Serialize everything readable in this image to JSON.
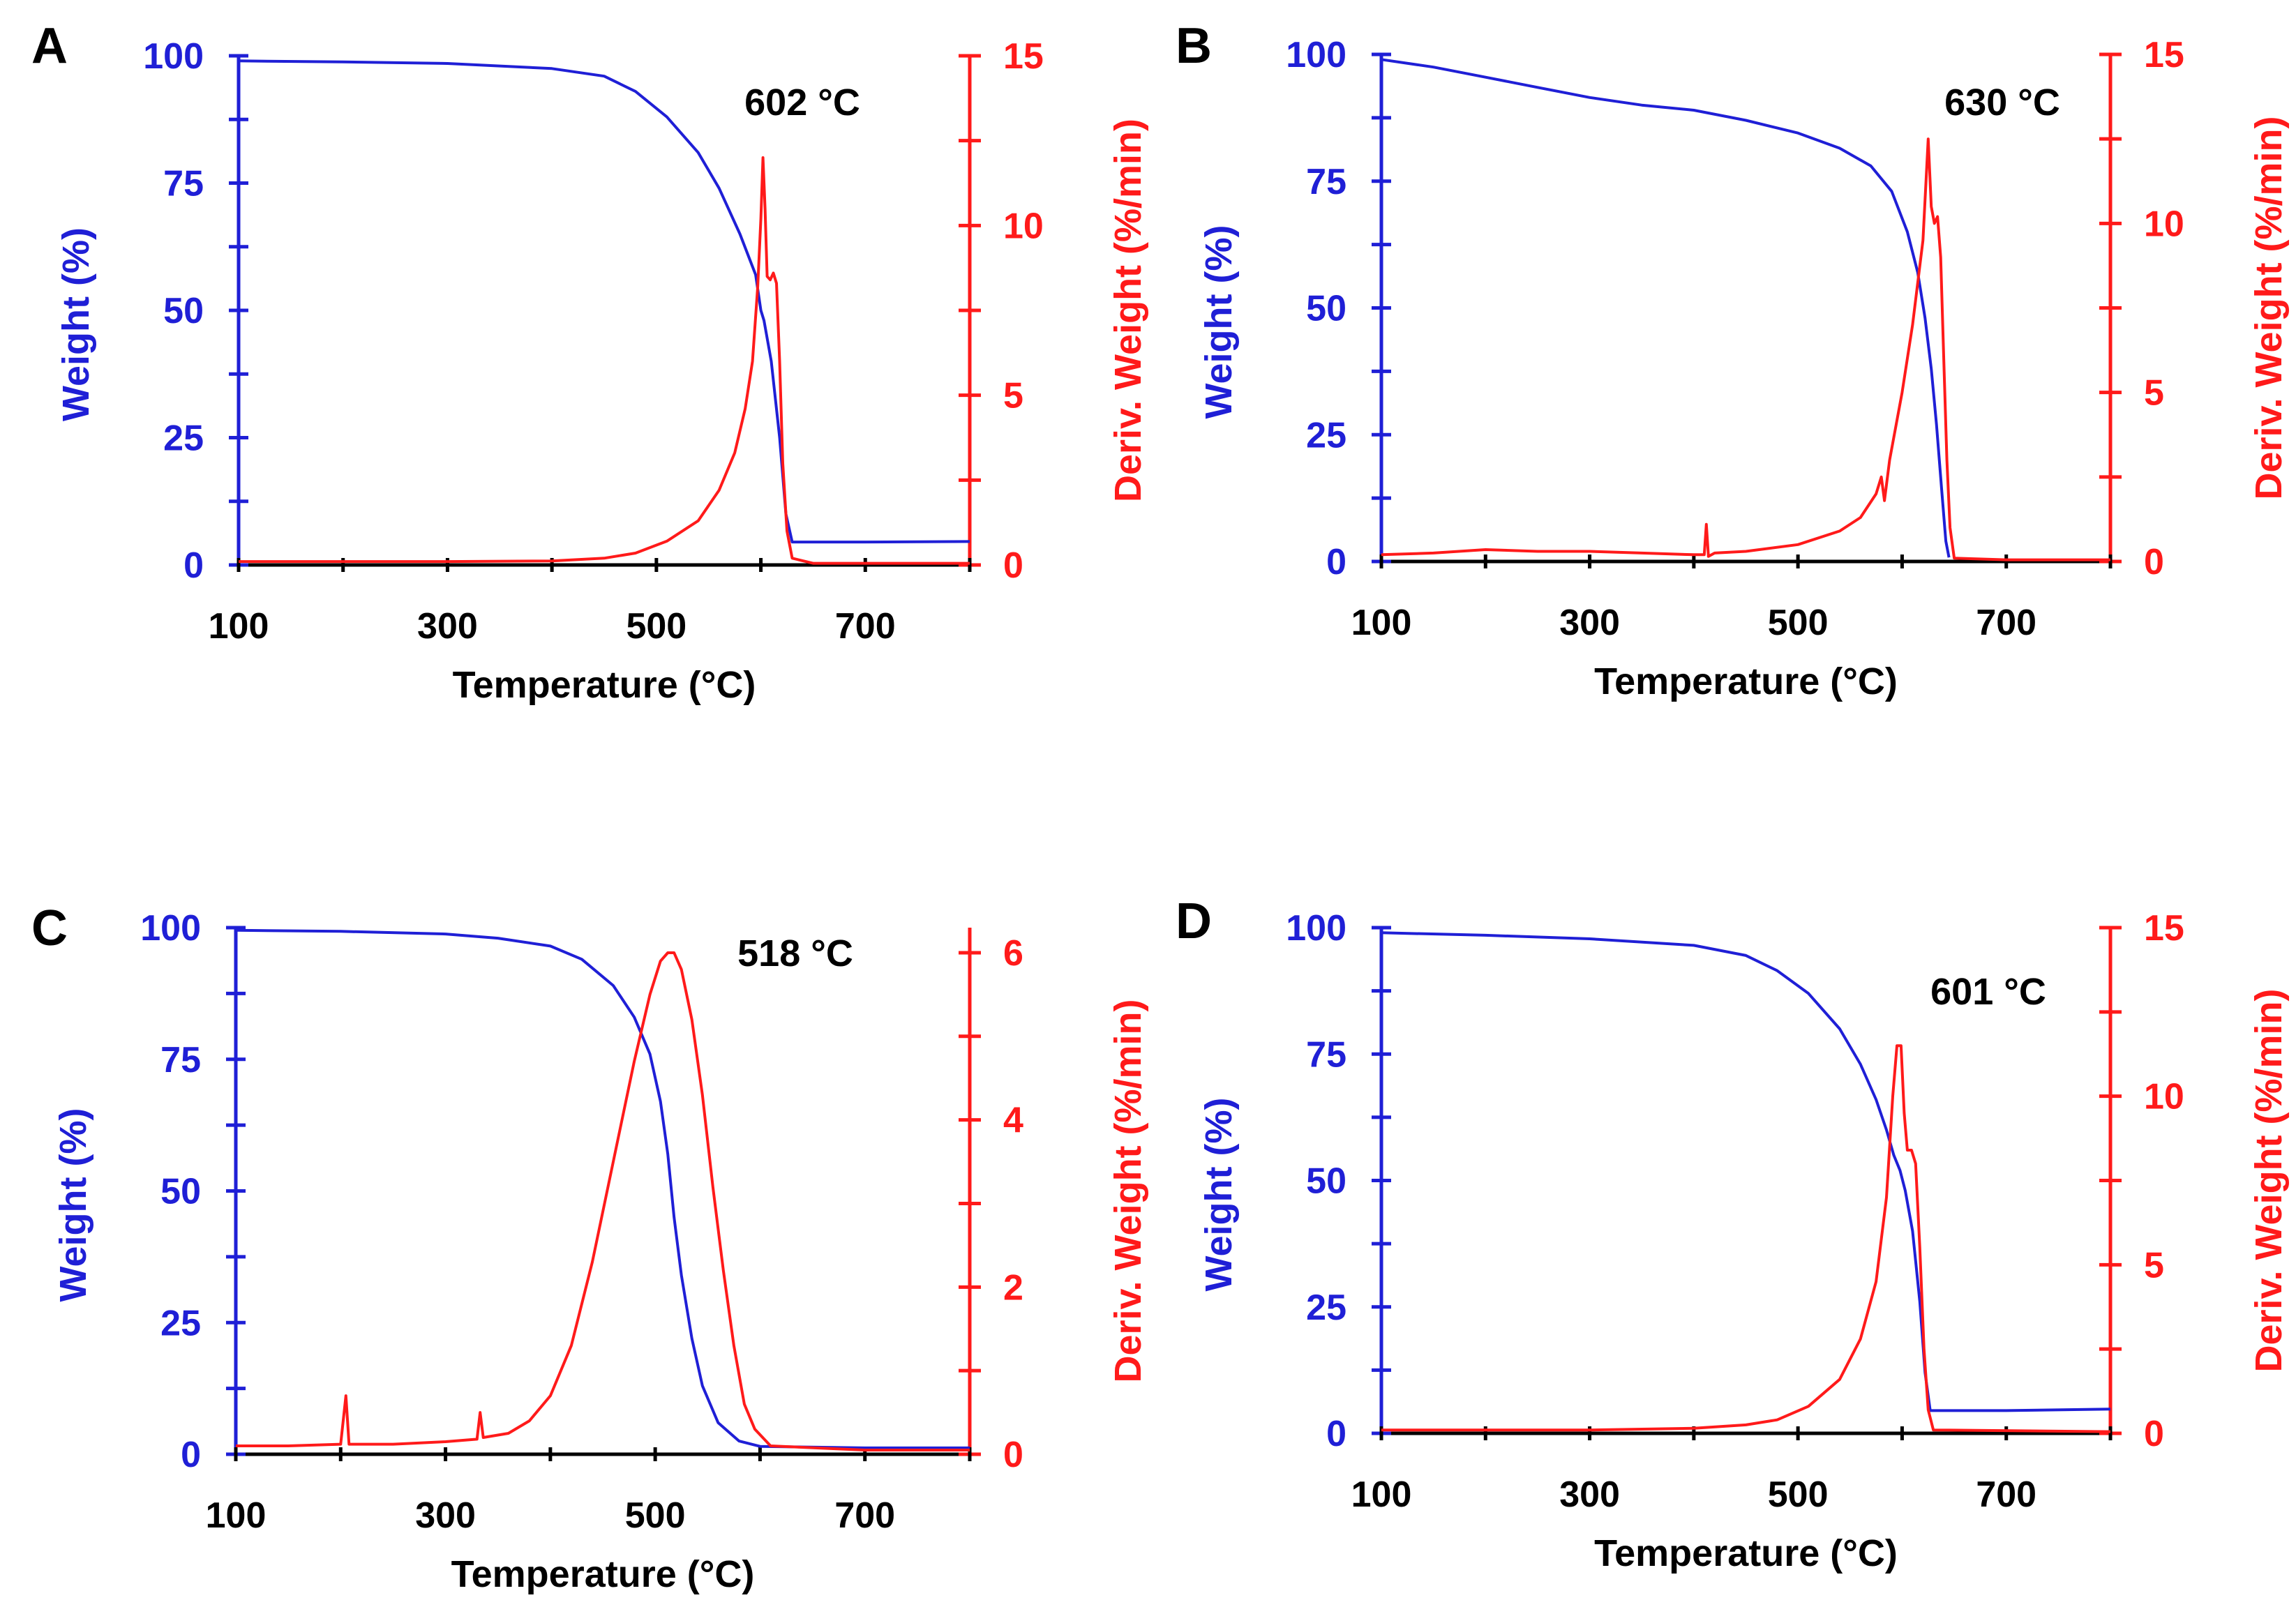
{
  "figure": {
    "colors": {
      "weight": "#1f1fd6",
      "deriv": "#ff1a1a",
      "axis_x": "#000000",
      "text": "#000000"
    }
  },
  "chart_data": [
    {
      "panel": "A",
      "type": "line",
      "peak_annotation": "602 °C",
      "xlabel": "Temperature (°C)",
      "ylabel": "Weight (%)",
      "y2label": "Deriv. Weight (%/min)",
      "xlim": [
        100,
        800
      ],
      "ylim": [
        0,
        100
      ],
      "y2lim": [
        0,
        15
      ],
      "xticks": [
        100,
        300,
        500,
        700
      ],
      "yticks": [
        0,
        25,
        50,
        75,
        100
      ],
      "y2ticks": [
        0,
        5,
        10,
        15
      ],
      "series": [
        {
          "name": "Weight",
          "axis": "left",
          "color": "#1f1fd6",
          "points": [
            [
              100,
              99
            ],
            [
              200,
              98.8
            ],
            [
              300,
              98.5
            ],
            [
              400,
              97.5
            ],
            [
              450,
              96
            ],
            [
              480,
              93
            ],
            [
              510,
              88
            ],
            [
              540,
              81
            ],
            [
              560,
              74
            ],
            [
              580,
              65
            ],
            [
              595,
              57
            ],
            [
              600,
              50
            ],
            [
              603,
              48
            ],
            [
              610,
              40
            ],
            [
              618,
              25
            ],
            [
              624,
              10
            ],
            [
              630,
              4.5
            ],
            [
              700,
              4.5
            ],
            [
              800,
              4.6
            ]
          ]
        },
        {
          "name": "Deriv. Weight",
          "axis": "right",
          "color": "#ff1a1a",
          "points": [
            [
              100,
              0.1
            ],
            [
              300,
              0.1
            ],
            [
              400,
              0.12
            ],
            [
              450,
              0.2
            ],
            [
              480,
              0.35
            ],
            [
              510,
              0.7
            ],
            [
              540,
              1.3
            ],
            [
              560,
              2.2
            ],
            [
              575,
              3.3
            ],
            [
              585,
              4.6
            ],
            [
              592,
              6
            ],
            [
              597,
              8.2
            ],
            [
              600,
              10.2
            ],
            [
              602,
              12
            ],
            [
              604,
              10.5
            ],
            [
              606,
              8.5
            ],
            [
              609,
              8.4
            ],
            [
              612,
              8.6
            ],
            [
              615,
              8.3
            ],
            [
              618,
              6
            ],
            [
              621,
              3
            ],
            [
              625,
              1
            ],
            [
              630,
              0.2
            ],
            [
              650,
              0.05
            ],
            [
              800,
              0.05
            ]
          ]
        }
      ]
    },
    {
      "panel": "B",
      "type": "line",
      "peak_annotation": "630 °C",
      "xlabel": "Temperature (°C)",
      "ylabel": "Weight (%)",
      "y2label": "Deriv. Weight (%/min)",
      "xlim": [
        100,
        800
      ],
      "ylim": [
        0,
        100
      ],
      "y2lim": [
        0,
        15
      ],
      "xticks": [
        100,
        300,
        500,
        700
      ],
      "yticks": [
        0,
        25,
        50,
        75,
        100
      ],
      "y2ticks": [
        0,
        5,
        10,
        15
      ],
      "series": [
        {
          "name": "Weight",
          "axis": "left",
          "color": "#1f1fd6",
          "points": [
            [
              100,
              99
            ],
            [
              150,
              97.5
            ],
            [
              200,
              95.5
            ],
            [
              250,
              93.5
            ],
            [
              300,
              91.5
            ],
            [
              350,
              90
            ],
            [
              400,
              89
            ],
            [
              450,
              87
            ],
            [
              500,
              84.5
            ],
            [
              540,
              81.5
            ],
            [
              570,
              78
            ],
            [
              590,
              73
            ],
            [
              605,
              65
            ],
            [
              615,
              57
            ],
            [
              622,
              48
            ],
            [
              628,
              38
            ],
            [
              633,
              27
            ],
            [
              638,
              14
            ],
            [
              642,
              4
            ],
            [
              645,
              0.8
            ]
          ]
        },
        {
          "name": "Deriv. Weight",
          "axis": "right",
          "color": "#ff1a1a",
          "points": [
            [
              100,
              0.2
            ],
            [
              150,
              0.25
            ],
            [
              200,
              0.35
            ],
            [
              250,
              0.3
            ],
            [
              300,
              0.3
            ],
            [
              350,
              0.25
            ],
            [
              400,
              0.2
            ],
            [
              410,
              0.2
            ],
            [
              412,
              1.1
            ],
            [
              414,
              0.15
            ],
            [
              420,
              0.25
            ],
            [
              450,
              0.3
            ],
            [
              500,
              0.5
            ],
            [
              540,
              0.9
            ],
            [
              560,
              1.3
            ],
            [
              575,
              2
            ],
            [
              580,
              2.5
            ],
            [
              583,
              1.8
            ],
            [
              588,
              3
            ],
            [
              600,
              5
            ],
            [
              610,
              7
            ],
            [
              620,
              9.5
            ],
            [
              625,
              12.5
            ],
            [
              628,
              10.5
            ],
            [
              631,
              10
            ],
            [
              634,
              10.2
            ],
            [
              637,
              9
            ],
            [
              640,
              6
            ],
            [
              643,
              3
            ],
            [
              646,
              1
            ],
            [
              650,
              0.1
            ],
            [
              700,
              0.05
            ],
            [
              800,
              0.05
            ]
          ]
        }
      ]
    },
    {
      "panel": "C",
      "type": "line",
      "peak_annotation": "518 °C",
      "xlabel": "Temperature (°C)",
      "ylabel": "Weight (%)",
      "y2label": "Deriv. Weight (%/min)",
      "xlim": [
        100,
        800
      ],
      "ylim": [
        0,
        100
      ],
      "y2lim": [
        0,
        6.3
      ],
      "xticks": [
        100,
        300,
        500,
        700
      ],
      "yticks": [
        0,
        25,
        50,
        75,
        100
      ],
      "y2ticks": [
        0,
        2,
        4,
        6
      ],
      "series": [
        {
          "name": "Weight",
          "axis": "left",
          "color": "#1f1fd6",
          "points": [
            [
              100,
              99.5
            ],
            [
              200,
              99.3
            ],
            [
              300,
              98.8
            ],
            [
              350,
              98
            ],
            [
              400,
              96.5
            ],
            [
              430,
              94
            ],
            [
              460,
              89
            ],
            [
              480,
              83
            ],
            [
              495,
              76
            ],
            [
              505,
              67
            ],
            [
              512,
              57
            ],
            [
              518,
              45
            ],
            [
              525,
              34
            ],
            [
              535,
              22
            ],
            [
              545,
              13
            ],
            [
              560,
              6
            ],
            [
              580,
              2.5
            ],
            [
              600,
              1.5
            ],
            [
              700,
              1.2
            ],
            [
              800,
              1.2
            ]
          ]
        },
        {
          "name": "Deriv. Weight",
          "axis": "right",
          "color": "#ff1a1a",
          "points": [
            [
              100,
              0.1
            ],
            [
              150,
              0.1
            ],
            [
              200,
              0.12
            ],
            [
              205,
              0.7
            ],
            [
              208,
              0.12
            ],
            [
              250,
              0.12
            ],
            [
              300,
              0.15
            ],
            [
              330,
              0.18
            ],
            [
              333,
              0.5
            ],
            [
              336,
              0.2
            ],
            [
              360,
              0.25
            ],
            [
              380,
              0.4
            ],
            [
              400,
              0.7
            ],
            [
              420,
              1.3
            ],
            [
              440,
              2.3
            ],
            [
              460,
              3.5
            ],
            [
              480,
              4.7
            ],
            [
              495,
              5.5
            ],
            [
              505,
              5.9
            ],
            [
              512,
              6
            ],
            [
              518,
              6
            ],
            [
              525,
              5.8
            ],
            [
              535,
              5.2
            ],
            [
              545,
              4.3
            ],
            [
              555,
              3.2
            ],
            [
              565,
              2.2
            ],
            [
              575,
              1.3
            ],
            [
              585,
              0.6
            ],
            [
              595,
              0.3
            ],
            [
              610,
              0.1
            ],
            [
              700,
              0.05
            ],
            [
              800,
              0.05
            ]
          ]
        }
      ]
    },
    {
      "panel": "D",
      "type": "line",
      "peak_annotation": "601 °C",
      "xlabel": "Temperature (°C)",
      "ylabel": "Weight (%)",
      "y2label": "Deriv. Weight (%/min)",
      "xlim": [
        100,
        800
      ],
      "ylim": [
        0,
        100
      ],
      "y2lim": [
        0,
        15
      ],
      "xticks": [
        100,
        300,
        500,
        700
      ],
      "yticks": [
        0,
        25,
        50,
        75,
        100
      ],
      "y2ticks": [
        0,
        5,
        10,
        15
      ],
      "series": [
        {
          "name": "Weight",
          "axis": "left",
          "color": "#1f1fd6",
          "points": [
            [
              100,
              99
            ],
            [
              200,
              98.5
            ],
            [
              300,
              97.8
            ],
            [
              400,
              96.5
            ],
            [
              450,
              94.5
            ],
            [
              480,
              91.5
            ],
            [
              510,
              87
            ],
            [
              540,
              80
            ],
            [
              560,
              73
            ],
            [
              575,
              66
            ],
            [
              585,
              60
            ],
            [
              592,
              55
            ],
            [
              598,
              52
            ],
            [
              603,
              48
            ],
            [
              610,
              40
            ],
            [
              617,
              26
            ],
            [
              622,
              12
            ],
            [
              627,
              4.5
            ],
            [
              700,
              4.5
            ],
            [
              800,
              4.8
            ]
          ]
        },
        {
          "name": "Deriv. Weight",
          "axis": "right",
          "color": "#ff1a1a",
          "points": [
            [
              100,
              0.1
            ],
            [
              300,
              0.1
            ],
            [
              400,
              0.15
            ],
            [
              450,
              0.25
            ],
            [
              480,
              0.4
            ],
            [
              510,
              0.8
            ],
            [
              540,
              1.6
            ],
            [
              560,
              2.8
            ],
            [
              575,
              4.5
            ],
            [
              585,
              7
            ],
            [
              591,
              10
            ],
            [
              595,
              11.5
            ],
            [
              599,
              11.5
            ],
            [
              602,
              9.5
            ],
            [
              605,
              8.4
            ],
            [
              609,
              8.4
            ],
            [
              613,
              8
            ],
            [
              617,
              5.5
            ],
            [
              621,
              2.5
            ],
            [
              625,
              0.7
            ],
            [
              630,
              0.1
            ],
            [
              800,
              0.05
            ]
          ]
        }
      ]
    }
  ]
}
